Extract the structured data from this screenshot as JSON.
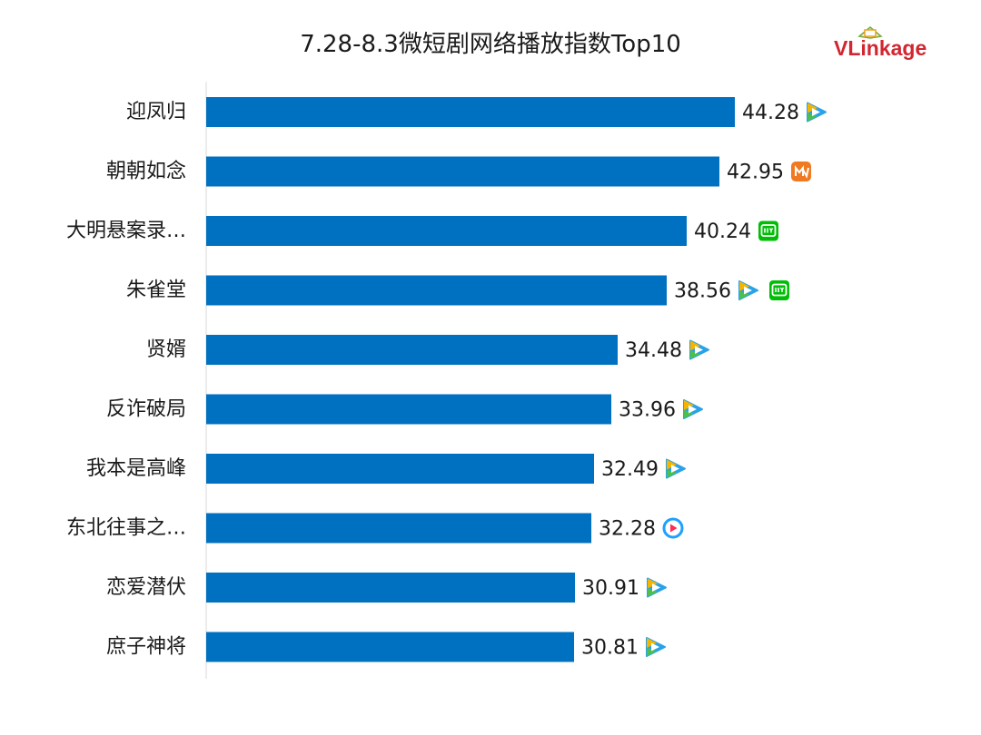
{
  "chart_data": {
    "type": "bar",
    "orientation": "horizontal",
    "title": "7.28-8.3微短剧网络播放指数Top10",
    "categories": [
      "迎凤归",
      "朝朝如念",
      "大明悬案录…",
      "朱雀堂",
      "贤婿",
      "反诈破局",
      "我本是高峰",
      "东北往事之…",
      "恋爱潜伏",
      "庶子神将"
    ],
    "values": [
      44.28,
      42.95,
      40.24,
      38.56,
      34.48,
      33.96,
      32.49,
      32.28,
      30.91,
      30.81
    ],
    "platforms": [
      [
        "tencent-video"
      ],
      [
        "mango-tv"
      ],
      [
        "iqiyi"
      ],
      [
        "tencent-video",
        "iqiyi"
      ],
      [
        "tencent-video"
      ],
      [
        "tencent-video"
      ],
      [
        "tencent-video"
      ],
      [
        "youku"
      ],
      [
        "tencent-video"
      ],
      [
        "tencent-video"
      ]
    ],
    "bar_color": "#0070c0",
    "xlim": [
      0,
      44.28
    ],
    "grid": false,
    "legend": "none"
  },
  "brand": {
    "name": "VLinkage",
    "color": "#d22630"
  }
}
